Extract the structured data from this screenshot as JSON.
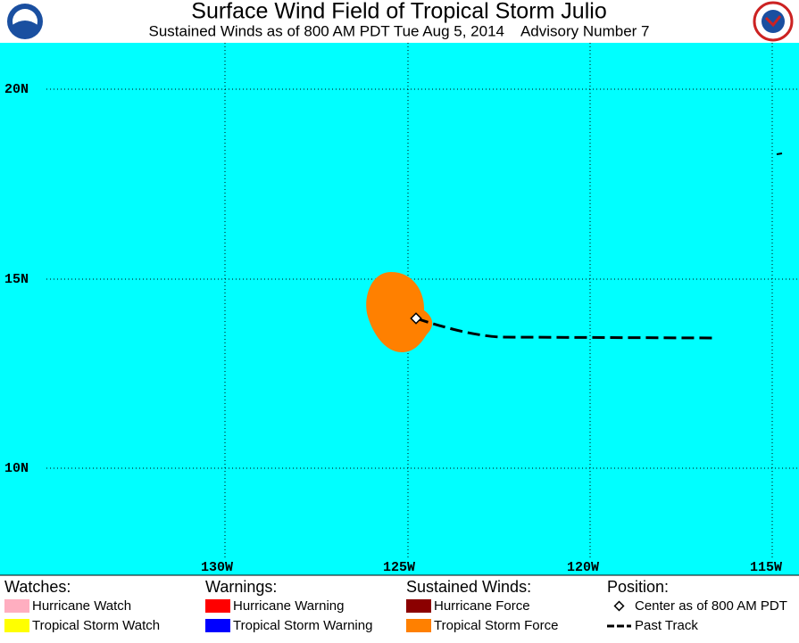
{
  "header": {
    "title": "Surface Wind Field of Tropical Storm Julio",
    "subtitle": "Sustained Winds as of 800 AM PDT Tue Aug 5, 2014    Advisory Number 7"
  },
  "map": {
    "lat_labels": [
      "20N",
      "15N",
      "10N"
    ],
    "lon_labels": [
      "130W",
      "125W",
      "120W",
      "115W"
    ]
  },
  "legend": [
    {
      "heading": "Watches:",
      "items": [
        "Hurricane Watch",
        "Tropical Storm Watch"
      ]
    },
    {
      "heading": "Warnings:",
      "items": [
        "Hurricane Warning",
        "Tropical Storm Warning"
      ]
    },
    {
      "heading": "Sustained Winds:",
      "items": [
        "Hurricane Force",
        "Tropical Storm Force"
      ]
    },
    {
      "heading": "Position:",
      "items": [
        "Center as of 800 AM PDT",
        "Past Track"
      ]
    }
  ]
}
